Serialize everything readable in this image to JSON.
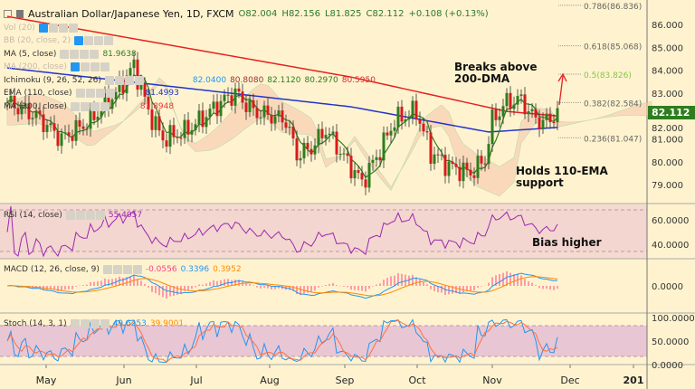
{
  "header": {
    "symbol": "Australian Dollar/Japanese Yen, 1D, FXCM",
    "open": "O82.004",
    "high": "H82.156",
    "low": "L81.825",
    "close": "C82.112",
    "change": "+0.108 (+0.13%)"
  },
  "legends": {
    "vol": "Vol (20)",
    "bb": "BB (20, close, 2)",
    "ma5": "MA (5, close)",
    "ma5_val": "81.9638",
    "ma200b": "MA (200, close)",
    "ichimoku": "Ichimoku (9, 26, 52, 26)",
    "ichi_vals": [
      "82.0400",
      "80.8080",
      "82.1120",
      "80.2970",
      "80.5950"
    ],
    "ema": "EMA (110, close)",
    "ema_val": "81.4993",
    "ma200": "MA (200, close)",
    "ma200_val": "81.8948",
    "rsi": "RSI (14, close)",
    "rsi_val": "55.4057",
    "macd": "MACD (12, 26, close, 9)",
    "macd_vals": [
      "-0.0556",
      "0.3396",
      "0.3952"
    ],
    "stoch": "Stoch (14, 3, 1)",
    "stoch_vals": [
      "49.6253",
      "39.9001"
    ]
  },
  "annotations": {
    "breaks": "Breaks above\n200-DMA",
    "holds": "Holds 110-EMA\nsupport",
    "bias": "Bias higher"
  },
  "last_price": "82.112",
  "fib": [
    {
      "label": "0.786(86.836)",
      "value": 86.836
    },
    {
      "label": "0.618(85.068)",
      "value": 85.068
    },
    {
      "label": "0.5(83.826)",
      "value": 83.826
    },
    {
      "label": "0.382(82.584)",
      "value": 82.584
    },
    {
      "label": "0.236(81.047)",
      "value": 81.047
    }
  ],
  "chart_data": {
    "type": "candlestick",
    "title": "Australian Dollar/Japanese Yen, 1D, FXCM",
    "price_ticks": [
      "86.000",
      "85.000",
      "84.000",
      "83.000",
      "82.000",
      "81.000",
      "80.000",
      "79.000"
    ],
    "price_range": [
      78.3,
      87.1
    ],
    "rsi_ticks": [
      "60.0000",
      "40.0000"
    ],
    "macd_ticks": [
      "0.0000"
    ],
    "stoch_ticks": [
      "100.0000",
      "50.0000",
      "0.0000"
    ],
    "x_ticks": [
      "May",
      "Jun",
      "Jul",
      "Aug",
      "Sep",
      "Oct",
      "Nov",
      "Dec",
      "201"
    ],
    "close_anchors": [
      [
        0,
        82.6
      ],
      [
        8,
        82
      ],
      [
        15,
        81.0
      ],
      [
        23,
        81.8
      ],
      [
        30,
        83
      ],
      [
        35,
        84.2
      ],
      [
        39,
        82.2
      ],
      [
        43,
        81.0
      ],
      [
        49,
        81.3
      ],
      [
        54,
        81.9
      ],
      [
        59,
        82.6
      ],
      [
        63,
        83.0
      ],
      [
        68,
        82.2
      ],
      [
        73,
        82.0
      ],
      [
        77,
        81.8
      ],
      [
        80,
        80.3
      ],
      [
        84,
        80.6
      ],
      [
        88,
        81.4
      ],
      [
        93,
        80.2
      ],
      [
        98,
        79.1
      ],
      [
        103,
        80.5
      ],
      [
        107,
        81.8
      ],
      [
        113,
        82.2
      ],
      [
        117,
        80.4
      ],
      [
        122,
        79.8
      ],
      [
        128,
        79.5
      ],
      [
        132,
        80.1
      ],
      [
        134,
        81.8
      ],
      [
        138,
        82.6
      ],
      [
        142,
        82.7
      ],
      [
        145,
        82.0
      ],
      [
        148,
        81.7
      ],
      [
        152,
        82.1
      ]
    ],
    "ma200_anchors": [
      [
        0,
        86.35
      ],
      [
        95,
        83.7
      ],
      [
        138,
        82.2
      ],
      [
        152,
        82.0
      ]
    ],
    "ema110_anchors": [
      [
        0,
        84.1
      ],
      [
        95,
        82.4
      ],
      [
        133,
        81.3
      ],
      [
        152,
        81.5
      ]
    ]
  }
}
